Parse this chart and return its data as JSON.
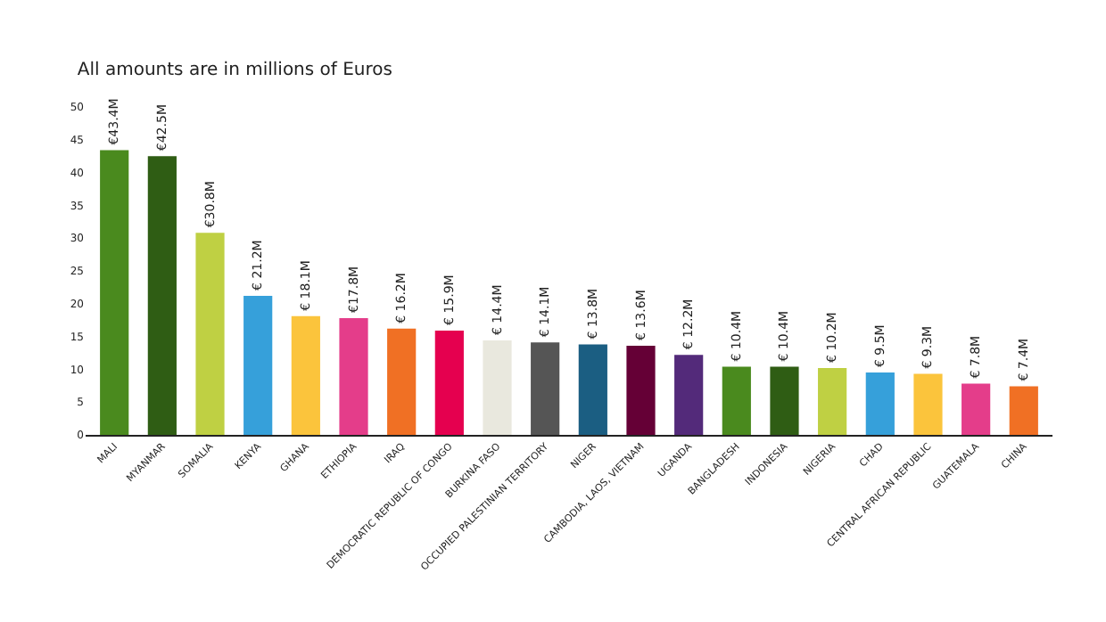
{
  "chart_data": {
    "type": "bar",
    "title": "All amounts are in millions of Euros",
    "categories": [
      "MALI",
      "MYANMAR",
      "SOMALIA",
      "KENYA",
      "GHANA",
      "ETHIOPIA",
      "IRAQ",
      "DEMOCRATIC REPUBLIC OF CONGO",
      "BURKINA FASO",
      "OCCUPIED PALESTINIAN TERRITORY",
      "NIGER",
      "CAMBODIA, LAOS, VIETNAM",
      "UGANDA",
      "BANGLADESH",
      "INDONESIA",
      "NIGERIA",
      "CHAD",
      "CENTRAL AFRICAN REPUBLIC",
      "GUATEMALA",
      "CHINA"
    ],
    "values": [
      43.4,
      42.5,
      30.8,
      21.2,
      18.1,
      17.8,
      16.2,
      15.9,
      14.4,
      14.1,
      13.8,
      13.6,
      12.2,
      10.4,
      10.4,
      10.2,
      9.5,
      9.3,
      7.8,
      7.4
    ],
    "value_labels": [
      "€43.4M",
      "€42.5M",
      "€30.8M",
      "€ 21.2M",
      "€ 18.1M",
      "€17.8M",
      "€ 16.2M",
      "€ 15.9M",
      "€ 14.4M",
      "€ 14.1M",
      "€ 13.8M",
      "€ 13.6M",
      "€ 12.2M",
      "€ 10.4M",
      "€ 10.4M",
      "€ 10.2M",
      "€ 9.5M",
      "€ 9.3M",
      "€ 7.8M",
      "€ 7.4M"
    ],
    "colors": [
      "#4a8a1e",
      "#2f5d14",
      "#bfd043",
      "#36a0da",
      "#fbc43c",
      "#e43d8a",
      "#f07024",
      "#e5004f",
      "#e9e8de",
      "#555555",
      "#1b5e82",
      "#650036",
      "#532a7a",
      "#4a8a1e",
      "#2f5d14",
      "#bfd043",
      "#36a0da",
      "#fbc43c",
      "#e43d8a",
      "#f07024"
    ],
    "ylim": [
      0,
      50
    ],
    "yticks": [
      0,
      5,
      10,
      15,
      20,
      25,
      30,
      35,
      40,
      45,
      50
    ],
    "grid": false
  }
}
